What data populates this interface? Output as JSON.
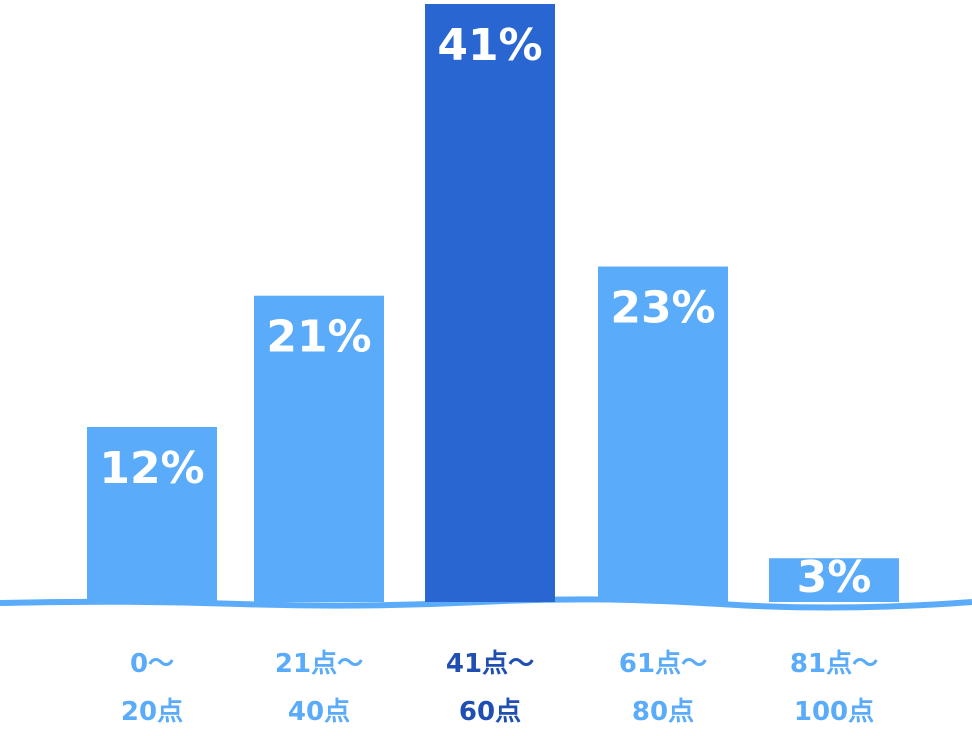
{
  "chart_data": {
    "type": "bar",
    "categories": [
      "0～\n20点",
      "21点～\n40点",
      "41点～\n60点",
      "61点～\n80点",
      "81点～\n100点"
    ],
    "values": [
      12,
      21,
      41,
      23,
      3
    ],
    "value_labels": [
      "12%",
      "21%",
      "41%",
      "23%",
      "3%"
    ],
    "colors": [
      "#5aabfa",
      "#5aabfa",
      "#2966d1",
      "#5aabfa",
      "#5aabfa"
    ],
    "label_colors": [
      "#5aabfa",
      "#5aabfa",
      "#1f4fb0",
      "#5aabfa",
      "#5aabfa"
    ],
    "ylim": [
      0,
      41
    ]
  }
}
